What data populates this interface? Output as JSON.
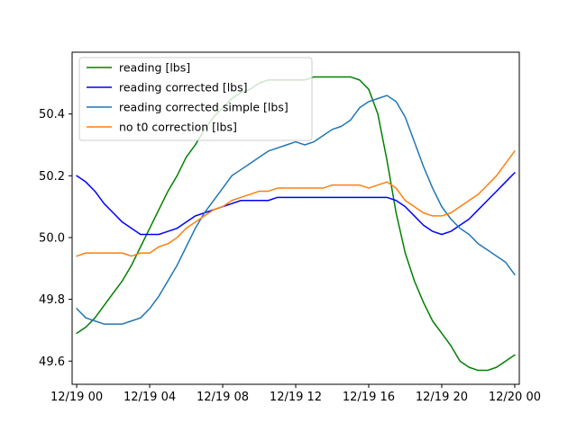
{
  "chart_data": {
    "type": "line",
    "title": "",
    "xlabel": "",
    "ylabel": "",
    "xlim": [
      -0.5,
      48.5
    ],
    "ylim": [
      49.525,
      50.6
    ],
    "grid": false,
    "legend_position": "upper-left",
    "x_ticks": [
      {
        "value": 0,
        "label": "12/19 00"
      },
      {
        "value": 8,
        "label": "12/19 04"
      },
      {
        "value": 16,
        "label": "12/19 08"
      },
      {
        "value": 24,
        "label": "12/19 12"
      },
      {
        "value": 32,
        "label": "12/19 16"
      },
      {
        "value": 40,
        "label": "12/19 20"
      },
      {
        "value": 48,
        "label": "12/20 00"
      }
    ],
    "y_ticks": [
      {
        "value": 49.6,
        "label": "49.6"
      },
      {
        "value": 49.8,
        "label": "49.8"
      },
      {
        "value": 50.0,
        "label": "50.0"
      },
      {
        "value": 50.2,
        "label": "50.2"
      },
      {
        "value": 50.4,
        "label": "50.4"
      }
    ],
    "x": [
      0,
      1,
      2,
      3,
      4,
      5,
      6,
      7,
      8,
      9,
      10,
      11,
      12,
      13,
      14,
      15,
      16,
      17,
      18,
      19,
      20,
      21,
      22,
      23,
      24,
      25,
      26,
      27,
      28,
      29,
      30,
      31,
      32,
      33,
      34,
      35,
      36,
      37,
      38,
      39,
      40,
      41,
      42,
      43,
      44,
      45,
      46,
      47,
      48
    ],
    "series": [
      {
        "name": "reading [lbs]",
        "color": "#008000",
        "values": [
          49.69,
          49.71,
          49.74,
          49.78,
          49.82,
          49.86,
          49.91,
          49.97,
          50.03,
          50.09,
          50.15,
          50.2,
          50.26,
          50.3,
          50.35,
          50.39,
          50.42,
          50.45,
          50.47,
          50.48,
          50.5,
          50.51,
          50.51,
          50.51,
          50.51,
          50.51,
          50.52,
          50.52,
          50.52,
          50.52,
          50.52,
          50.51,
          50.48,
          50.4,
          50.25,
          50.08,
          49.95,
          49.86,
          49.79,
          49.73,
          49.69,
          49.65,
          49.6,
          49.58,
          49.57,
          49.57,
          49.58,
          49.6,
          49.62
        ]
      },
      {
        "name": "reading corrected [lbs]",
        "color": "#0000ff",
        "values": [
          50.2,
          50.18,
          50.15,
          50.11,
          50.08,
          50.05,
          50.03,
          50.01,
          50.01,
          50.01,
          50.02,
          50.03,
          50.05,
          50.07,
          50.08,
          50.09,
          50.1,
          50.11,
          50.12,
          50.12,
          50.12,
          50.12,
          50.13,
          50.13,
          50.13,
          50.13,
          50.13,
          50.13,
          50.13,
          50.13,
          50.13,
          50.13,
          50.13,
          50.13,
          50.13,
          50.12,
          50.1,
          50.07,
          50.04,
          50.02,
          50.01,
          50.02,
          50.04,
          50.06,
          50.09,
          50.12,
          50.15,
          50.18,
          50.21
        ]
      },
      {
        "name": "reading corrected simple [lbs]",
        "color": "#1f77b4",
        "values": [
          49.77,
          49.74,
          49.73,
          49.72,
          49.72,
          49.72,
          49.73,
          49.74,
          49.77,
          49.81,
          49.86,
          49.91,
          49.97,
          50.03,
          50.08,
          50.12,
          50.16,
          50.2,
          50.22,
          50.24,
          50.26,
          50.28,
          50.29,
          50.3,
          50.31,
          50.3,
          50.31,
          50.33,
          50.35,
          50.36,
          50.38,
          50.42,
          50.44,
          50.45,
          50.46,
          50.44,
          50.39,
          50.31,
          50.23,
          50.16,
          50.1,
          50.06,
          50.03,
          50.01,
          49.98,
          49.96,
          49.94,
          49.92,
          49.88
        ]
      },
      {
        "name": "no t0 correction [lbs]",
        "color": "#ff7f0e",
        "values": [
          49.94,
          49.95,
          49.95,
          49.95,
          49.95,
          49.95,
          49.94,
          49.95,
          49.95,
          49.97,
          49.98,
          50.0,
          50.03,
          50.05,
          50.07,
          50.09,
          50.1,
          50.12,
          50.13,
          50.14,
          50.15,
          50.15,
          50.16,
          50.16,
          50.16,
          50.16,
          50.16,
          50.16,
          50.17,
          50.17,
          50.17,
          50.17,
          50.16,
          50.17,
          50.18,
          50.16,
          50.12,
          50.1,
          50.08,
          50.07,
          50.07,
          50.08,
          50.1,
          50.12,
          50.14,
          50.17,
          50.2,
          50.24,
          50.28
        ]
      }
    ]
  }
}
